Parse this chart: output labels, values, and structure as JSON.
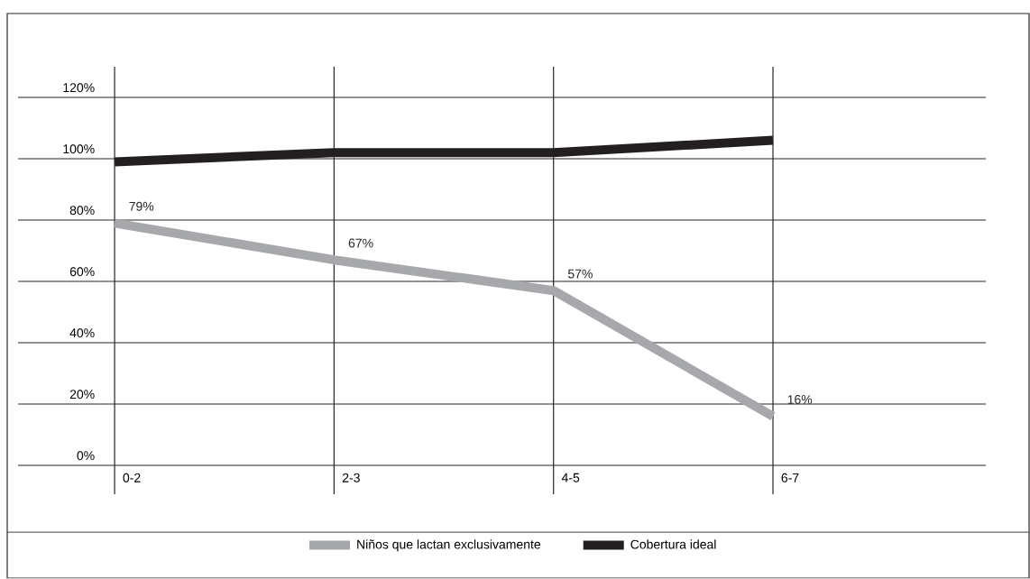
{
  "chart_data": {
    "type": "line",
    "categories": [
      "0-2",
      "2-3",
      "4-5",
      "6-7"
    ],
    "series": [
      {
        "name": "Niños que lactan exclusivamente",
        "color": "#a7a8ab",
        "values": [
          79,
          67,
          57,
          16
        ],
        "value_labels": [
          "79%",
          "67%",
          "57%",
          "16%"
        ]
      },
      {
        "name": "Cobertura ideal",
        "color": "#231f20",
        "values": [
          99,
          102,
          102,
          106
        ]
      }
    ],
    "ylim": [
      0,
      130
    ],
    "yticks": [
      {
        "value": 0,
        "label": "0%"
      },
      {
        "value": 20,
        "label": "20%"
      },
      {
        "value": 40,
        "label": "40%"
      },
      {
        "value": 60,
        "label": "60%"
      },
      {
        "value": 80,
        "label": "80%"
      },
      {
        "value": 100,
        "label": "100%"
      },
      {
        "value": 120,
        "label": "120%"
      }
    ],
    "grid": true,
    "legend": "bottom",
    "marker": "none",
    "line_style": "solid"
  }
}
